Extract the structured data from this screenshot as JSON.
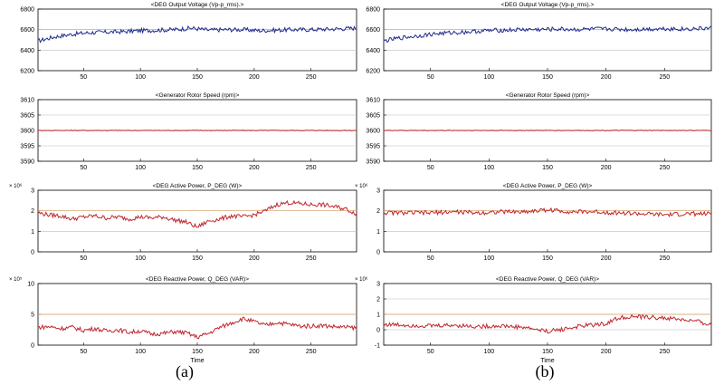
{
  "captions": [
    "(a)",
    "(b)"
  ],
  "x_axis_label": "Time",
  "chart_data": [
    {
      "panel": "a",
      "type": "line",
      "title": "<DEG Output Voltage (Vp-p_rms).>",
      "xlim": [
        10,
        290
      ],
      "ylim": [
        6200,
        6800
      ],
      "xticks": [
        50,
        100,
        150,
        200,
        250
      ],
      "yticks": [
        6200,
        6400,
        6600,
        6800
      ],
      "ytick_labels": [
        "6200",
        "6400",
        "6600",
        "6800"
      ],
      "exponent": "",
      "xlabel": "",
      "line_color": "#1f2a8c",
      "ref_line": 6600,
      "ref_color": "#d9a066",
      "grid": "horizontal",
      "x": [
        10,
        25,
        40,
        55,
        70,
        85,
        100,
        115,
        130,
        145,
        160,
        175,
        190,
        205,
        220,
        235,
        250,
        265,
        280,
        290
      ],
      "y": [
        6490,
        6530,
        6555,
        6570,
        6575,
        6580,
        6590,
        6595,
        6600,
        6615,
        6595,
        6600,
        6600,
        6590,
        6595,
        6600,
        6600,
        6605,
        6610,
        6615
      ]
    },
    {
      "panel": "a",
      "type": "line",
      "title": "<Generator Rotor Speed (rpm)>",
      "xlim": [
        10,
        290
      ],
      "ylim": [
        3590,
        3610
      ],
      "xticks": [
        50,
        100,
        150,
        200,
        250
      ],
      "yticks": [
        3590,
        3595,
        3600,
        3605,
        3610
      ],
      "ytick_labels": [
        "3590",
        "3595",
        "3600",
        "3605",
        "3610"
      ],
      "exponent": "",
      "xlabel": "",
      "line_color": "#c0262d",
      "ref_line": 3600,
      "ref_color": "#d9a066",
      "grid": "horizontal",
      "x": [
        10,
        290
      ],
      "y": [
        3600,
        3600
      ]
    },
    {
      "panel": "a",
      "type": "line",
      "title": "<DEG Active Power, P_DEG (W)>",
      "xlim": [
        10,
        290
      ],
      "ylim": [
        0,
        3
      ],
      "xticks": [
        50,
        100,
        150,
        200,
        250
      ],
      "yticks": [
        0,
        1,
        2,
        3
      ],
      "ytick_labels": [
        "0",
        "1",
        "2",
        "3"
      ],
      "exponent": "× 10⁶",
      "xlabel": "",
      "line_color": "#c0262d",
      "ref_line": 2,
      "ref_color": "#d9a066",
      "grid": "horizontal",
      "x": [
        10,
        20,
        30,
        40,
        50,
        60,
        70,
        80,
        90,
        100,
        110,
        120,
        130,
        140,
        150,
        155,
        160,
        170,
        180,
        190,
        200,
        210,
        220,
        230,
        240,
        250,
        260,
        270,
        280,
        290
      ],
      "y": [
        1.9,
        1.8,
        1.75,
        1.6,
        1.7,
        1.75,
        1.65,
        1.7,
        1.6,
        1.7,
        1.65,
        1.7,
        1.55,
        1.45,
        1.2,
        1.35,
        1.5,
        1.6,
        1.75,
        1.7,
        1.8,
        2.0,
        2.3,
        2.4,
        2.35,
        2.3,
        2.3,
        2.2,
        2.1,
        1.85
      ]
    },
    {
      "panel": "a",
      "type": "line",
      "title": "<DEG Reactive Power, Q_DEG (VAR)>",
      "xlim": [
        10,
        290
      ],
      "ylim": [
        0,
        10
      ],
      "xticks": [
        50,
        100,
        150,
        200,
        250
      ],
      "yticks": [
        0,
        5,
        10
      ],
      "ytick_labels": [
        "0",
        "5",
        "10"
      ],
      "exponent": "× 10⁵",
      "xlabel": "Time",
      "line_color": "#c0262d",
      "ref_line": 5,
      "ref_color": "#d9a066",
      "grid": "horizontal",
      "x": [
        10,
        20,
        30,
        40,
        50,
        60,
        70,
        80,
        90,
        100,
        110,
        120,
        130,
        140,
        150,
        160,
        170,
        180,
        190,
        200,
        210,
        220,
        230,
        240,
        250,
        260,
        270,
        280,
        290
      ],
      "y": [
        2.9,
        3.0,
        2.7,
        2.9,
        2.4,
        2.7,
        2.3,
        2.5,
        2.1,
        2.3,
        1.8,
        1.9,
        2.2,
        2.0,
        1.3,
        1.9,
        2.9,
        3.6,
        4.3,
        3.8,
        3.2,
        3.7,
        3.4,
        3.1,
        3.1,
        3.2,
        3.0,
        2.9,
        2.8
      ]
    },
    {
      "panel": "b",
      "type": "line",
      "title": "<DEG Output Voltage (Vp-p_rms).>",
      "xlim": [
        10,
        290
      ],
      "ylim": [
        6200,
        6800
      ],
      "xticks": [
        50,
        100,
        150,
        200,
        250
      ],
      "yticks": [
        6200,
        6400,
        6600,
        6800
      ],
      "ytick_labels": [
        "6200",
        "6400",
        "6600",
        "6800"
      ],
      "exponent": "",
      "xlabel": "",
      "line_color": "#1f2a8c",
      "ref_line": 6600,
      "ref_color": "#d9a066",
      "grid": "horizontal",
      "x": [
        10,
        25,
        40,
        55,
        70,
        85,
        100,
        115,
        130,
        145,
        160,
        175,
        190,
        205,
        220,
        235,
        250,
        265,
        280,
        290
      ],
      "y": [
        6490,
        6520,
        6540,
        6560,
        6570,
        6580,
        6590,
        6595,
        6600,
        6600,
        6605,
        6600,
        6605,
        6605,
        6600,
        6605,
        6610,
        6605,
        6610,
        6615
      ]
    },
    {
      "panel": "b",
      "type": "line",
      "title": "<Generator Rotor Speed (rpm)>",
      "xlim": [
        10,
        290
      ],
      "ylim": [
        3590,
        3610
      ],
      "xticks": [
        50,
        100,
        150,
        200,
        250
      ],
      "yticks": [
        3590,
        3595,
        3600,
        3605,
        3610
      ],
      "ytick_labels": [
        "3590",
        "3595",
        "3600",
        "3605",
        "3610"
      ],
      "exponent": "",
      "xlabel": "",
      "line_color": "#c0262d",
      "ref_line": 3600,
      "ref_color": "#d9a066",
      "grid": "horizontal",
      "x": [
        10,
        290
      ],
      "y": [
        3600,
        3600
      ]
    },
    {
      "panel": "b",
      "type": "line",
      "title": "<DEG Active Power, P_DEG (W)>",
      "xlim": [
        10,
        290
      ],
      "ylim": [
        0,
        3
      ],
      "xticks": [
        50,
        100,
        150,
        200,
        250
      ],
      "yticks": [
        0,
        1,
        2,
        3
      ],
      "ytick_labels": [
        "0",
        "1",
        "2",
        "3"
      ],
      "exponent": "× 10⁶",
      "xlabel": "",
      "line_color": "#c0262d",
      "ref_line": 2,
      "ref_color": "#d9a066",
      "grid": "horizontal",
      "x": [
        10,
        30,
        50,
        70,
        90,
        110,
        130,
        150,
        160,
        170,
        190,
        210,
        230,
        250,
        270,
        290
      ],
      "y": [
        1.9,
        1.9,
        1.9,
        1.95,
        1.9,
        1.95,
        1.95,
        2.05,
        2.0,
        1.95,
        1.95,
        1.9,
        1.85,
        1.8,
        1.85,
        1.85
      ]
    },
    {
      "panel": "b",
      "type": "line",
      "title": "<DEG Reactive Power, Q_DEG (VAR)>",
      "xlim": [
        10,
        290
      ],
      "ylim": [
        -1,
        3
      ],
      "xticks": [
        50,
        100,
        150,
        200,
        250
      ],
      "yticks": [
        -1,
        0,
        1,
        2,
        3
      ],
      "ytick_labels": [
        "-1",
        "0",
        "1",
        "2",
        "3"
      ],
      "exponent": "× 10⁶",
      "xlabel": "Time",
      "line_color": "#c0262d",
      "ref_line": 1,
      "ref_color": "#d9a066",
      "grid": "horizontal",
      "x": [
        10,
        30,
        50,
        70,
        90,
        110,
        130,
        150,
        160,
        180,
        200,
        210,
        220,
        240,
        260,
        280,
        290
      ],
      "y": [
        0.35,
        0.3,
        0.25,
        0.3,
        0.2,
        0.25,
        0.15,
        -0.1,
        0.0,
        0.25,
        0.4,
        0.75,
        0.85,
        0.8,
        0.7,
        0.5,
        0.3
      ]
    }
  ]
}
